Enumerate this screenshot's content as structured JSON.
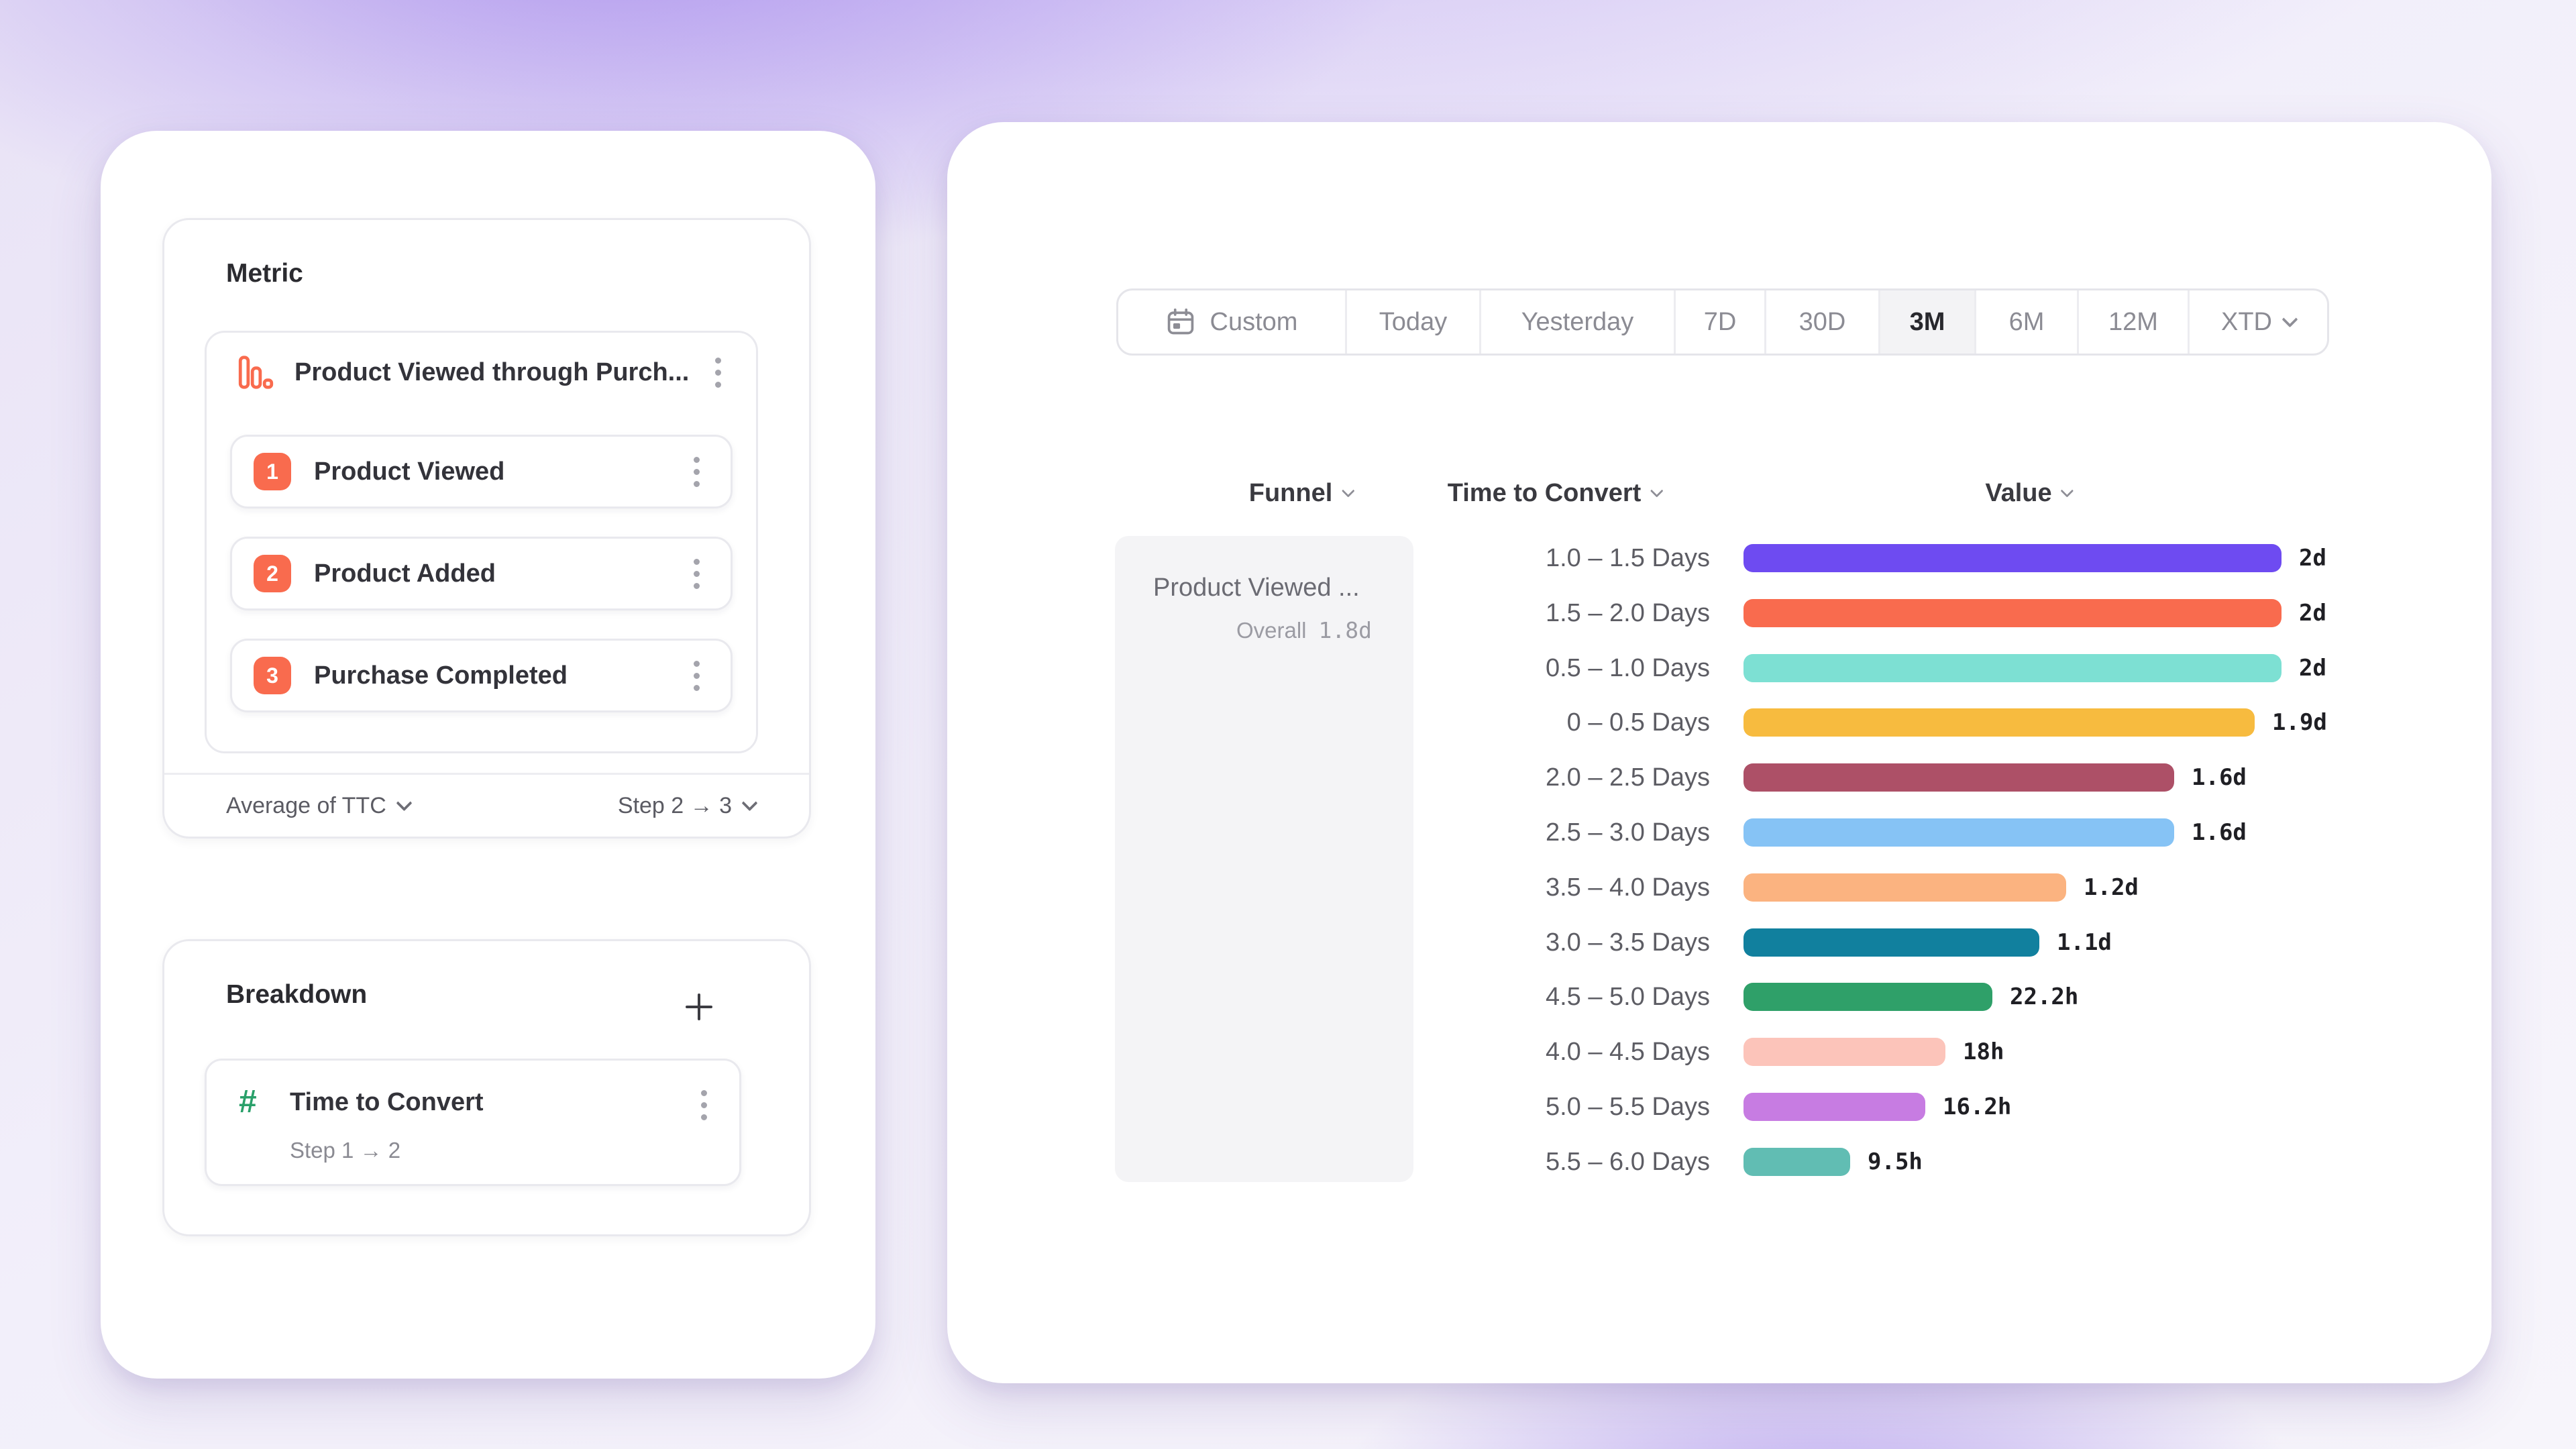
{
  "colors": {
    "accent_coral": "#F96B4E",
    "hash_green": "#2AA06A",
    "funnel_cell_bg": "#f4f4f6",
    "selected_segment_bg": "#f3f3f5"
  },
  "left_panel": {
    "metric": {
      "title": "Metric",
      "funnel": {
        "title": "Product Viewed through Purch...",
        "steps": [
          {
            "number": "1",
            "label": "Product Viewed"
          },
          {
            "number": "2",
            "label": "Product Added"
          },
          {
            "number": "3",
            "label": "Purchase Completed"
          }
        ]
      },
      "footer": {
        "aggregation_label": "Average of TTC",
        "step_range_label": "Step 2 → 3"
      }
    },
    "breakdown": {
      "title": "Breakdown",
      "item": {
        "label": "Time to Convert",
        "sublabel": "Step 1 → 2"
      }
    }
  },
  "right_panel": {
    "date_range": {
      "selected": "3M",
      "options": [
        {
          "label": "Custom",
          "icon": "calendar-icon"
        },
        {
          "label": "Today"
        },
        {
          "label": "Yesterday"
        },
        {
          "label": "7D"
        },
        {
          "label": "30D"
        },
        {
          "label": "3M"
        },
        {
          "label": "6M"
        },
        {
          "label": "12M"
        },
        {
          "label": "XTD",
          "chevron": true
        }
      ]
    },
    "table": {
      "headers": [
        {
          "label": "Funnel"
        },
        {
          "label": "Time to Convert"
        },
        {
          "label": "Value"
        }
      ],
      "funnel_cell": {
        "name": "Product Viewed ...",
        "overall_label": "Overall",
        "overall_value": "1.8d"
      },
      "rows": [
        {
          "bucket": "1.0 – 1.5 Days",
          "value": "2d",
          "days": 2.0,
          "color": "#6E4BF1"
        },
        {
          "bucket": "1.5 – 2.0 Days",
          "value": "2d",
          "days": 2.0,
          "color": "#F96B4E"
        },
        {
          "bucket": "0.5 – 1.0 Days",
          "value": "2d",
          "days": 2.0,
          "color": "#7DE0D3"
        },
        {
          "bucket": "0 – 0.5 Days",
          "value": "1.9d",
          "days": 1.9,
          "color": "#F7BB3F"
        },
        {
          "bucket": "2.0 – 2.5 Days",
          "value": "1.6d",
          "days": 1.6,
          "color": "#AD5067"
        },
        {
          "bucket": "2.5 – 3.0 Days",
          "value": "1.6d",
          "days": 1.6,
          "color": "#86C3F5"
        },
        {
          "bucket": "3.5 – 4.0 Days",
          "value": "1.2d",
          "days": 1.2,
          "color": "#FBB380"
        },
        {
          "bucket": "3.0 – 3.5 Days",
          "value": "1.1d",
          "days": 1.1,
          "color": "#11809E"
        },
        {
          "bucket": "4.5 – 5.0 Days",
          "value": "22.2h",
          "days": 0.925,
          "color": "#2FA069"
        },
        {
          "bucket": "4.0 – 4.5 Days",
          "value": "18h",
          "days": 0.75,
          "color": "#FCC4BA"
        },
        {
          "bucket": "5.0 – 5.5 Days",
          "value": "16.2h",
          "days": 0.675,
          "color": "#C77CE2"
        },
        {
          "bucket": "5.5 – 6.0 Days",
          "value": "9.5h",
          "days": 0.396,
          "color": "#61BDB3"
        }
      ]
    }
  },
  "chart_data": {
    "type": "bar",
    "orientation": "horizontal",
    "columns": [
      "Funnel",
      "Time to Convert",
      "Value"
    ],
    "series_name": "Product Viewed ... (Overall 1.8d)",
    "categories": [
      "1.0 – 1.5 Days",
      "1.5 – 2.0 Days",
      "0.5 – 1.0 Days",
      "0 – 0.5 Days",
      "2.0 – 2.5 Days",
      "2.5 – 3.0 Days",
      "3.5 – 4.0 Days",
      "3.0 – 3.5 Days",
      "4.5 – 5.0 Days",
      "4.0 – 4.5 Days",
      "5.0 – 5.5 Days",
      "5.5 – 6.0 Days"
    ],
    "values_days": [
      2.0,
      2.0,
      2.0,
      1.9,
      1.6,
      1.6,
      1.2,
      1.1,
      0.925,
      0.75,
      0.675,
      0.396
    ],
    "value_labels": [
      "2d",
      "2d",
      "2d",
      "1.9d",
      "1.6d",
      "1.6d",
      "1.2d",
      "1.1d",
      "22.2h",
      "18h",
      "16.2h",
      "9.5h"
    ],
    "bar_colors": [
      "#6E4BF1",
      "#F96B4E",
      "#7DE0D3",
      "#F7BB3F",
      "#AD5067",
      "#86C3F5",
      "#FBB380",
      "#11809E",
      "#2FA069",
      "#FCC4BA",
      "#C77CE2",
      "#61BDB3"
    ],
    "xlim_days": [
      0,
      2
    ],
    "grid": false,
    "legend": false
  }
}
